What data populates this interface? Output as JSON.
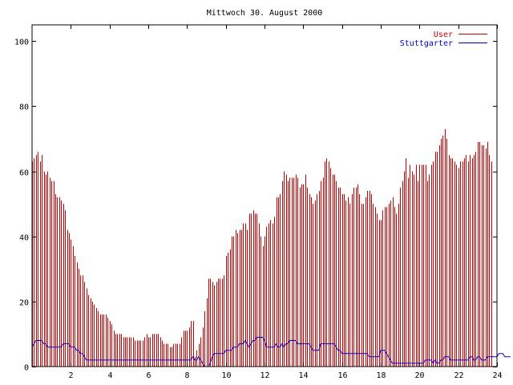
{
  "chart_data": {
    "type": "bar",
    "title": "Mittwoch 30. August 2000",
    "xlabel": "",
    "ylabel": "",
    "xlim": [
      0,
      24
    ],
    "ylim": [
      0,
      105
    ],
    "x_ticks": [
      2,
      4,
      6,
      8,
      10,
      12,
      14,
      16,
      18,
      20,
      22,
      24
    ],
    "y_ticks": [
      0,
      20,
      40,
      60,
      80,
      100
    ],
    "grid": false,
    "legend_position": "top-right",
    "interval_hours": 0.1,
    "series": [
      {
        "name": "User",
        "type": "bar",
        "color": "#cc0000",
        "values": [
          63,
          64,
          65,
          66,
          63,
          65,
          60,
          59,
          60,
          58,
          57,
          57,
          53,
          52,
          52,
          51,
          50,
          48,
          42,
          41,
          39,
          37,
          34,
          32,
          30,
          28,
          28,
          26,
          24,
          22,
          21,
          20,
          19,
          18,
          17,
          16,
          16,
          16,
          16,
          15,
          14,
          13,
          11,
          10,
          10,
          10,
          10,
          9,
          9,
          9,
          9,
          9,
          9,
          8,
          8,
          8,
          8,
          8,
          9,
          10,
          9,
          9,
          10,
          10,
          10,
          10,
          9,
          8,
          7,
          7,
          7,
          6,
          6,
          7,
          7,
          7,
          7,
          9,
          11,
          11,
          11,
          12,
          14,
          14,
          3,
          5,
          7,
          9,
          12,
          17,
          21,
          27,
          27,
          26,
          25,
          26,
          27,
          27,
          27,
          28,
          34,
          35,
          36,
          40,
          40,
          42,
          41,
          42,
          42,
          44,
          44,
          42,
          47,
          47,
          48,
          47,
          47,
          44,
          40,
          37,
          40,
          43,
          44,
          45,
          44,
          46,
          52,
          52,
          53,
          57,
          60,
          59,
          57,
          58,
          58,
          58,
          59,
          58,
          55,
          56,
          56,
          59,
          55,
          53,
          52,
          50,
          51,
          53,
          54,
          57,
          58,
          63,
          64,
          63,
          61,
          59,
          59,
          57,
          55,
          55,
          53,
          53,
          51,
          52,
          50,
          53,
          55,
          55,
          56,
          53,
          50,
          50,
          52,
          54,
          54,
          53,
          50,
          49,
          47,
          45,
          45,
          48,
          49,
          49,
          50,
          51,
          52,
          49,
          47,
          50,
          55,
          57,
          60,
          64,
          58,
          62,
          60,
          59,
          62,
          57,
          62,
          62,
          62,
          62,
          57,
          59,
          62,
          63,
          66,
          66,
          68,
          70,
          71,
          73,
          70,
          65,
          64,
          64,
          63,
          62,
          61,
          63,
          63,
          64,
          65,
          63,
          65,
          64,
          65,
          66,
          69,
          69,
          68,
          68,
          67,
          69,
          65,
          63
        ]
      },
      {
        "name": "Stuttgarter",
        "type": "line",
        "color": "#0000cc",
        "values": [
          6,
          7,
          8,
          8,
          8,
          8,
          7,
          7,
          6,
          6,
          6,
          6,
          6,
          6,
          6,
          6,
          7,
          7,
          7,
          7,
          6,
          6,
          6,
          5,
          5,
          4,
          4,
          3,
          2,
          2,
          2,
          2,
          2,
          2,
          2,
          2,
          2,
          2,
          2,
          2,
          2,
          2,
          2,
          2,
          2,
          2,
          2,
          2,
          2,
          2,
          2,
          2,
          2,
          2,
          2,
          2,
          2,
          2,
          2,
          2,
          2,
          2,
          2,
          2,
          2,
          2,
          2,
          2,
          2,
          2,
          2,
          2,
          2,
          2,
          2,
          2,
          2,
          2,
          2,
          2,
          2,
          2,
          2,
          3,
          2,
          2,
          3,
          2,
          1,
          0,
          0,
          0,
          1,
          3,
          4,
          4,
          4,
          4,
          4,
          4,
          5,
          5,
          5,
          5,
          6,
          6,
          6,
          7,
          7,
          7,
          8,
          7,
          6,
          7,
          8,
          8,
          9,
          9,
          9,
          9,
          8,
          6,
          6,
          6,
          6,
          6,
          7,
          6,
          6,
          7,
          6,
          7,
          7,
          8,
          8,
          8,
          8,
          7,
          7,
          7,
          7,
          7,
          7,
          7,
          6,
          5,
          5,
          5,
          5,
          7,
          7,
          7,
          7,
          7,
          7,
          7,
          7,
          6,
          5,
          5,
          4,
          4,
          4,
          4,
          4,
          4,
          4,
          4,
          4,
          4,
          4,
          4,
          4,
          4,
          3,
          3,
          3,
          3,
          3,
          3,
          5,
          5,
          5,
          4,
          3,
          2,
          1,
          1,
          1,
          1,
          1,
          1,
          1,
          1,
          1,
          1,
          1,
          1,
          1,
          1,
          1,
          1,
          1,
          2,
          2,
          2,
          2,
          1,
          2,
          1,
          1,
          2,
          2,
          3,
          3,
          3,
          2,
          2,
          2,
          2,
          2,
          2,
          2,
          2,
          2,
          2,
          3,
          3,
          2,
          2,
          3,
          3,
          2,
          2,
          2,
          3,
          3,
          3,
          3,
          3,
          3,
          4,
          4,
          4,
          3,
          3,
          3,
          3
        ]
      }
    ]
  }
}
